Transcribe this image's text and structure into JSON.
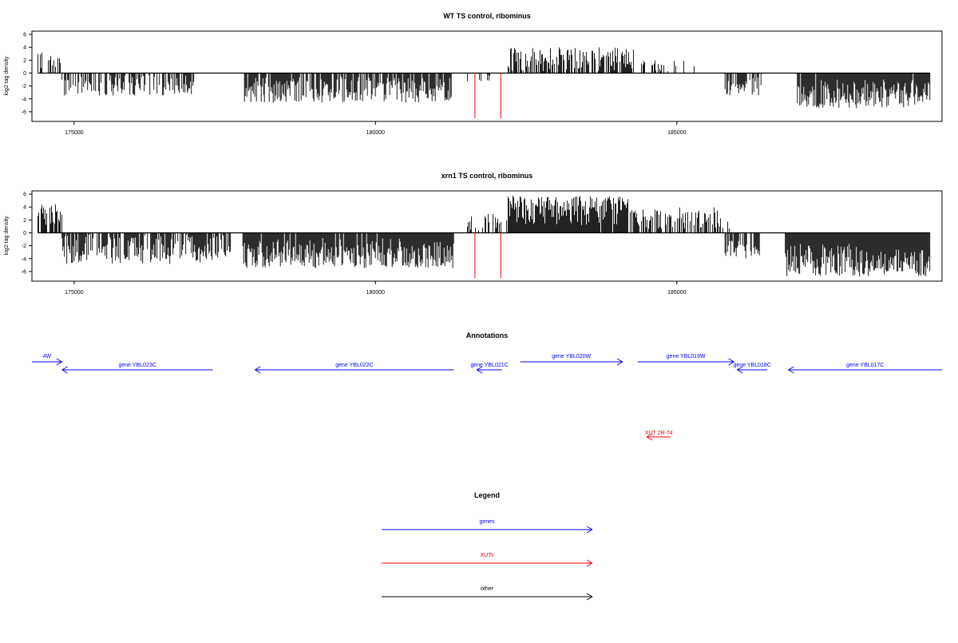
{
  "colors": {
    "gene": "#0000ff",
    "xut": "#ff0000",
    "other": "#000000",
    "bar": "#000000"
  },
  "panels": [
    {
      "id": "wt",
      "title": "WT TS control, ribominus",
      "ylabel": "log2 tag density",
      "xlim": [
        174300,
        189400
      ],
      "ylim": [
        -7.5,
        6.5
      ],
      "yticks": [
        6,
        4,
        2,
        0,
        -2,
        -4,
        -6
      ],
      "xticks": [
        175000,
        180000,
        185000
      ],
      "seed": 7,
      "regions": [
        {
          "from": 174400,
          "to": 174800,
          "sign": 1,
          "min": 0.5,
          "max": 3.2,
          "density": 0.45
        },
        {
          "from": 174800,
          "to": 177000,
          "sign": -1,
          "min": 0.3,
          "max": 3.5,
          "density": 0.55
        },
        {
          "from": 177800,
          "to": 181300,
          "sign": -1,
          "min": 0.5,
          "max": 4.6,
          "density": 0.8
        },
        {
          "from": 181500,
          "to": 182000,
          "sign": -1,
          "min": 0.2,
          "max": 1.5,
          "density": 0.2
        },
        {
          "from": 182200,
          "to": 184300,
          "sign": 1,
          "min": 0.3,
          "max": 4.0,
          "density": 0.6
        },
        {
          "from": 184400,
          "to": 185400,
          "sign": 1,
          "min": 0.2,
          "max": 2.0,
          "density": 0.25
        },
        {
          "from": 185800,
          "to": 186400,
          "sign": -1,
          "min": 0.5,
          "max": 3.5,
          "density": 0.6
        },
        {
          "from": 187000,
          "to": 189200,
          "sign": -1,
          "min": 1.0,
          "max": 5.5,
          "density": 0.95
        }
      ],
      "red_lines": [
        181650,
        182080
      ]
    },
    {
      "id": "xrn1",
      "title": "xrn1 TS control, ribominus",
      "ylabel": "log2 tag density",
      "xlim": [
        174300,
        189400
      ],
      "ylim": [
        -7.5,
        6.5
      ],
      "yticks": [
        6,
        4,
        2,
        0,
        -2,
        -4,
        -6
      ],
      "xticks": [
        175000,
        180000,
        185000
      ],
      "seed": 23,
      "regions": [
        {
          "from": 174400,
          "to": 174800,
          "sign": 1,
          "min": 1.0,
          "max": 4.6,
          "density": 0.7
        },
        {
          "from": 174800,
          "to": 177600,
          "sign": -1,
          "min": 0.3,
          "max": 4.8,
          "density": 0.75
        },
        {
          "from": 177800,
          "to": 181300,
          "sign": -1,
          "min": 0.8,
          "max": 5.5,
          "density": 0.95
        },
        {
          "from": 181500,
          "to": 182200,
          "sign": 1,
          "min": 0.3,
          "max": 3.0,
          "density": 0.35
        },
        {
          "from": 182200,
          "to": 184200,
          "sign": 1,
          "min": 1.0,
          "max": 5.8,
          "density": 0.98
        },
        {
          "from": 184200,
          "to": 185900,
          "sign": 1,
          "min": 0.5,
          "max": 4.0,
          "density": 0.55
        },
        {
          "from": 185800,
          "to": 186400,
          "sign": -1,
          "min": 0.5,
          "max": 4.0,
          "density": 0.7
        },
        {
          "from": 186800,
          "to": 189200,
          "sign": -1,
          "min": 1.5,
          "max": 6.8,
          "density": 1.0
        }
      ],
      "red_lines": [
        181650,
        182080
      ]
    }
  ],
  "annotations": {
    "title": "Annotations",
    "items": [
      {
        "label": "4W",
        "type": "gene",
        "dir": "right",
        "start": 174300,
        "end": 174800,
        "row": 0
      },
      {
        "label": "gene YBL023C",
        "type": "gene",
        "dir": "left",
        "start": 174800,
        "end": 177300,
        "row": 1
      },
      {
        "label": "gene YBL022C",
        "type": "gene",
        "dir": "left",
        "start": 178000,
        "end": 181300,
        "row": 1
      },
      {
        "label": "gene YBL021C",
        "type": "gene",
        "dir": "left",
        "start": 181680,
        "end": 182100,
        "row": 1
      },
      {
        "label": "gene YBL020W",
        "type": "gene",
        "dir": "right",
        "start": 182400,
        "end": 184100,
        "row": 0
      },
      {
        "label": "gene YBL019W",
        "type": "gene",
        "dir": "right",
        "start": 184350,
        "end": 185950,
        "row": 0
      },
      {
        "label": "gene YBL018C",
        "type": "gene",
        "dir": "left",
        "start": 186000,
        "end": 186500,
        "row": 1
      },
      {
        "label": "gene YBL017C",
        "type": "gene",
        "dir": "left",
        "start": 186850,
        "end": 189400,
        "row": 1
      },
      {
        "label": "XUT 2R-74",
        "type": "xut",
        "dir": "left",
        "start": 184500,
        "end": 184900,
        "row": 2
      }
    ]
  },
  "legend": {
    "title": "Legend",
    "items": [
      {
        "label": "genes",
        "type": "gene"
      },
      {
        "label": "XUTs",
        "type": "xut"
      },
      {
        "label": "other",
        "type": "other"
      }
    ]
  },
  "chart_data": [
    {
      "type": "bar",
      "title": "WT TS control, ribominus",
      "ylabel": "log2 tag density",
      "xlim": [
        174300,
        189400
      ],
      "ylim": [
        -7.5,
        6.5
      ],
      "grid": false,
      "series": [
        {
          "values_summary": "mostly negative log2 tag density (about -1 to -5) from 174800 to 181300 and 185800 to 189200; positive values (up to about 4.5) from 182200 to 185400; red marker lines at about 181650 and 182080 reaching about -7.5"
        }
      ]
    },
    {
      "type": "bar",
      "title": "xrn1 TS control, ribominus",
      "ylabel": "log2 tag density",
      "xlim": [
        174300,
        189400
      ],
      "ylim": [
        -7.5,
        6.5
      ],
      "grid": false,
      "series": [
        {
          "values_summary": "negative values (about -1 to -6.5) from 174800 to 181300 and 186800 to 189200; strong positive values (up to about 6) from 182200 to 185900; red marker lines at about 181650 and 182080 reaching about -7.5"
        }
      ]
    }
  ]
}
